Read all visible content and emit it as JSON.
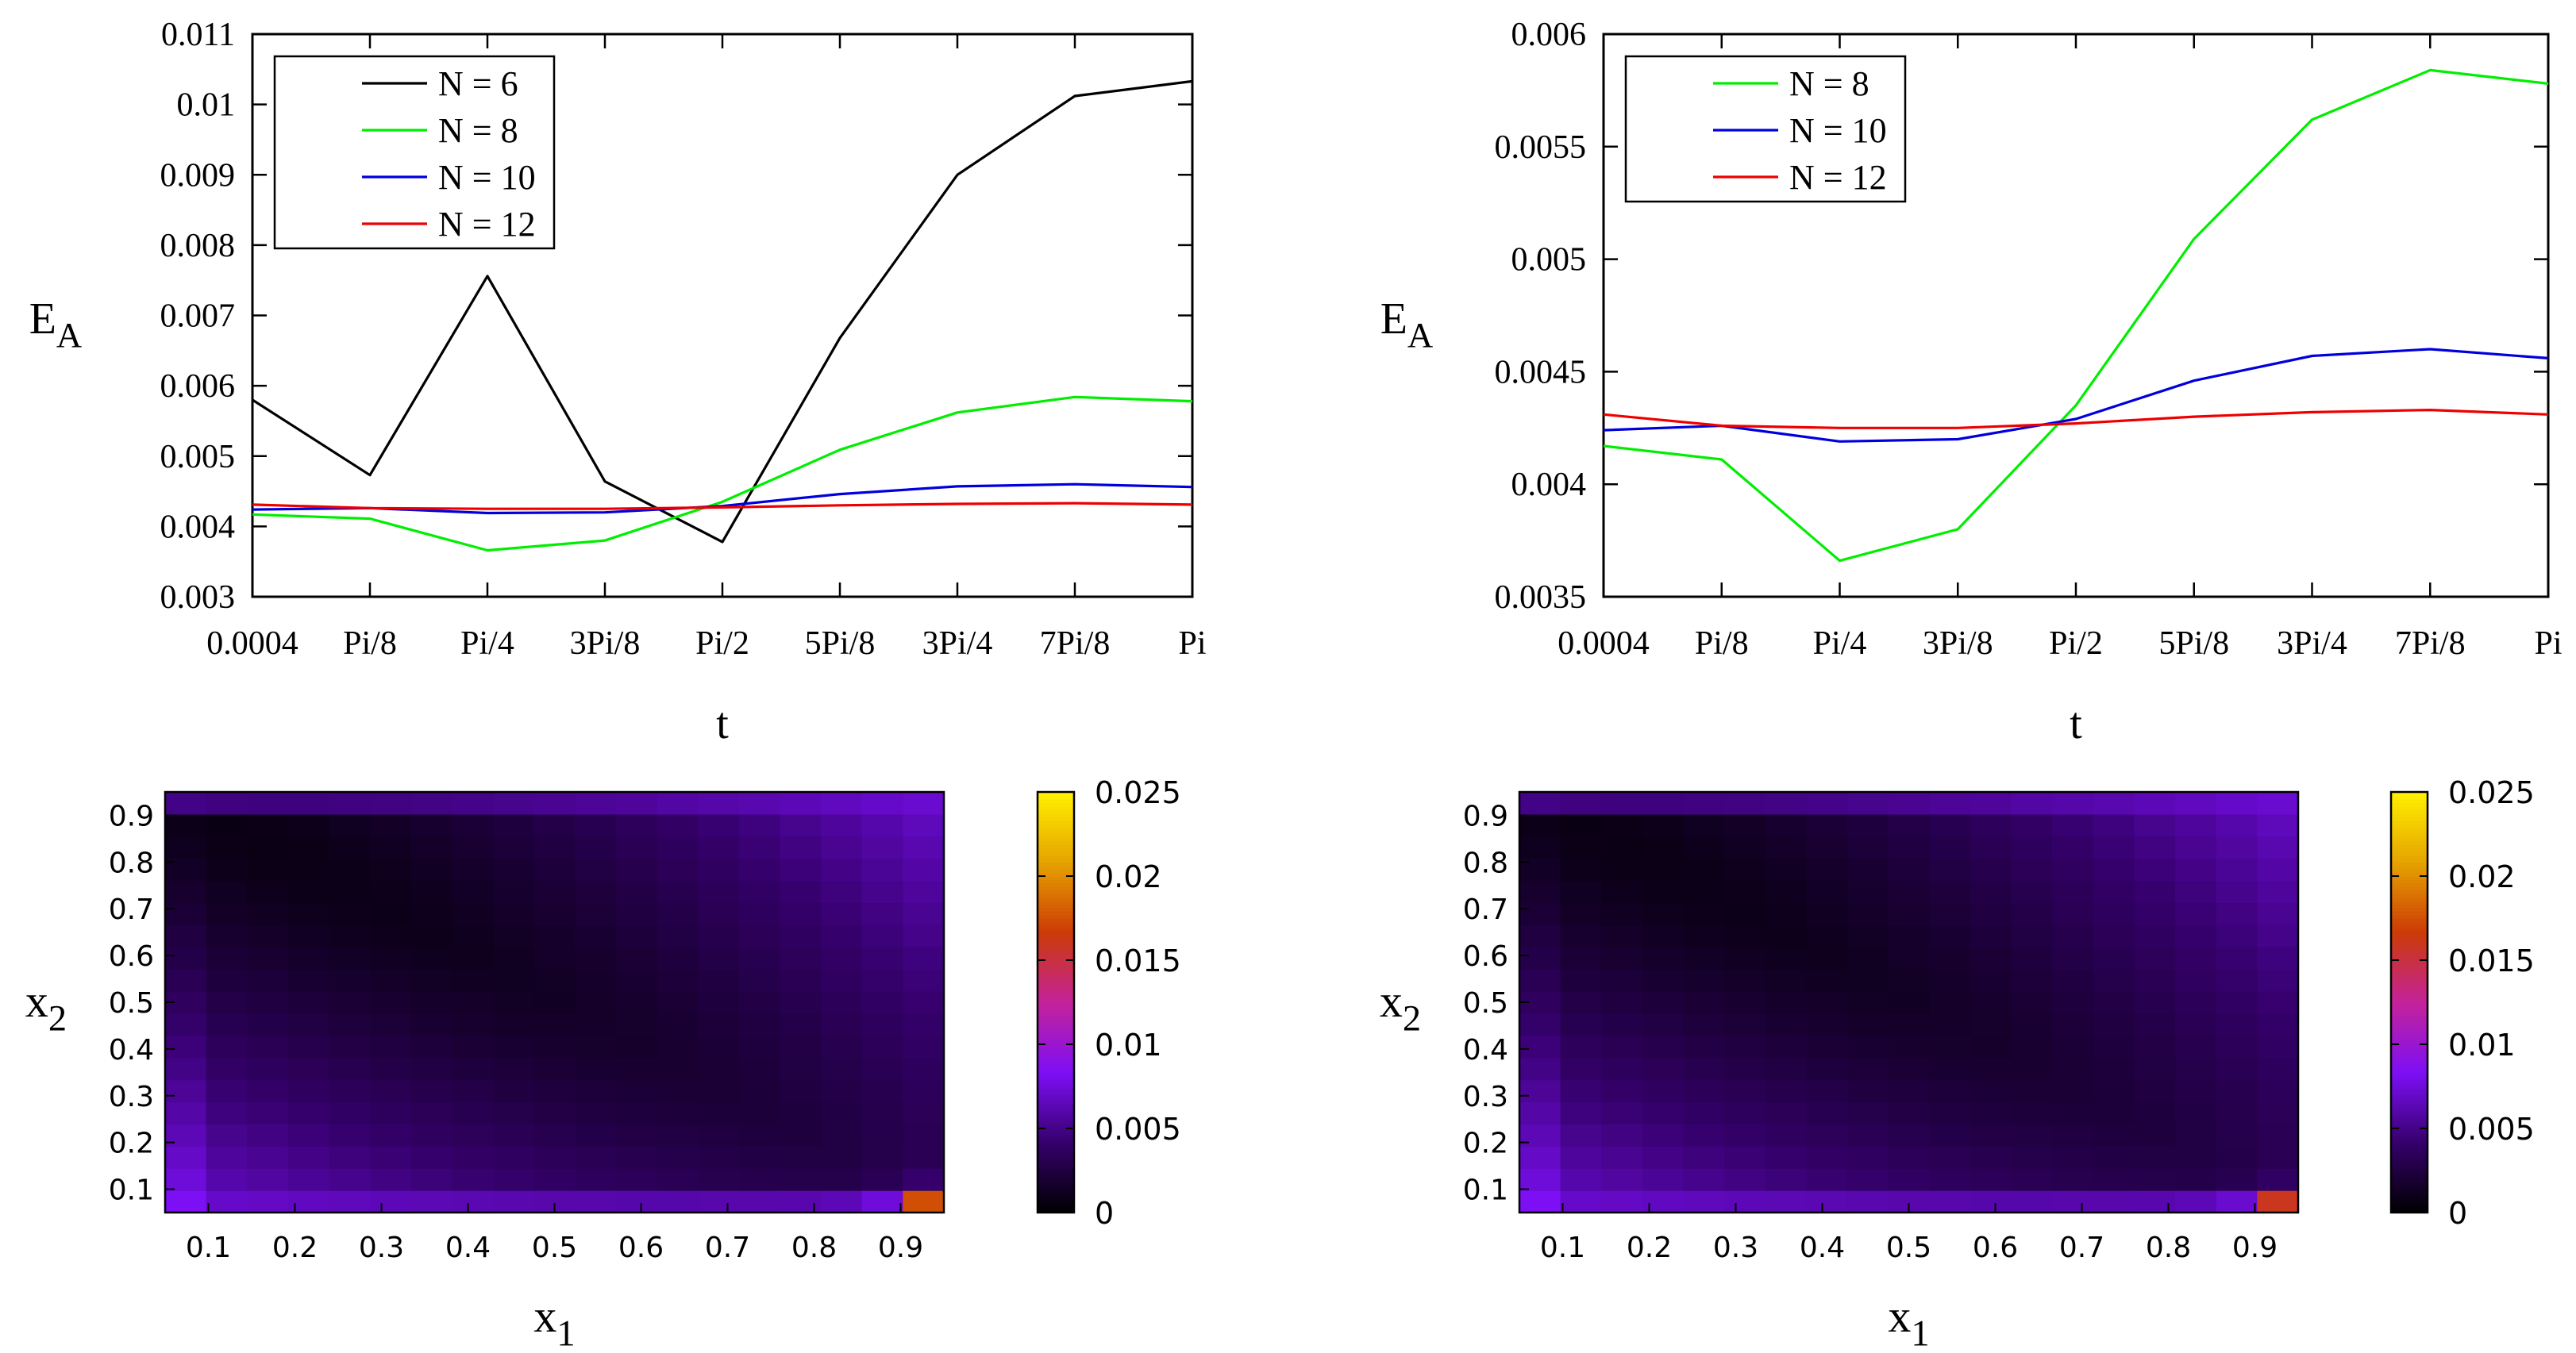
{
  "chart_data": [
    {
      "id": "top-left",
      "type": "line",
      "title": "",
      "xlabel": "t",
      "ylabel_main": "E",
      "ylabel_sub": "A",
      "categories": [
        "0.0004",
        "Pi/8",
        "Pi/4",
        "3Pi/8",
        "Pi/2",
        "5Pi/8",
        "3Pi/4",
        "7Pi/8",
        "Pi"
      ],
      "ylim": [
        0.003,
        0.011
      ],
      "yticks": [
        "0.003",
        "0.004",
        "0.005",
        "0.006",
        "0.007",
        "0.008",
        "0.009",
        "0.01",
        "0.011"
      ],
      "legend_position": "top-left",
      "series": [
        {
          "name": "N = 6",
          "color": "#000000",
          "values": [
            0.0058,
            0.00473,
            0.00756,
            0.00464,
            0.00378,
            0.00668,
            0.009,
            0.01012,
            0.01033
          ]
        },
        {
          "name": "N = 8",
          "color": "#00ee00",
          "values": [
            0.00417,
            0.00411,
            0.00366,
            0.0038,
            0.00435,
            0.00509,
            0.00562,
            0.00584,
            0.00578
          ]
        },
        {
          "name": "N = 10",
          "color": "#0000dd",
          "values": [
            0.00424,
            0.00426,
            0.00419,
            0.0042,
            0.00429,
            0.00446,
            0.00457,
            0.0046,
            0.00456
          ]
        },
        {
          "name": "N = 12",
          "color": "#ee0000",
          "values": [
            0.00431,
            0.00426,
            0.00425,
            0.00425,
            0.00427,
            0.0043,
            0.00432,
            0.00433,
            0.00431
          ]
        }
      ]
    },
    {
      "id": "top-right",
      "type": "line",
      "title": "",
      "xlabel": "t",
      "ylabel_main": "E",
      "ylabel_sub": "A",
      "categories": [
        "0.0004",
        "Pi/8",
        "Pi/4",
        "3Pi/8",
        "Pi/2",
        "5Pi/8",
        "3Pi/4",
        "7Pi/8",
        "Pi"
      ],
      "ylim": [
        0.0035,
        0.006
      ],
      "yticks": [
        "0.0035",
        "0.004",
        "0.0045",
        "0.005",
        "0.0055",
        "0.006"
      ],
      "legend_position": "top-left",
      "series": [
        {
          "name": "N = 8",
          "color": "#00ee00",
          "values": [
            0.00417,
            0.00411,
            0.00366,
            0.0038,
            0.00435,
            0.00509,
            0.00562,
            0.00584,
            0.00578
          ]
        },
        {
          "name": "N = 10",
          "color": "#0000dd",
          "values": [
            0.00424,
            0.00426,
            0.00419,
            0.0042,
            0.00429,
            0.00446,
            0.00457,
            0.0046,
            0.00456
          ]
        },
        {
          "name": "N = 12",
          "color": "#ee0000",
          "values": [
            0.00431,
            0.00426,
            0.00425,
            0.00425,
            0.00427,
            0.0043,
            0.00432,
            0.00433,
            0.00431
          ]
        }
      ]
    },
    {
      "id": "bottom-left",
      "type": "heatmap",
      "xlabel_main": "x",
      "xlabel_sub": "1",
      "ylabel_main": "x",
      "ylabel_sub": "2",
      "xlim": [
        0.05,
        0.95
      ],
      "ylim": [
        0.05,
        0.95
      ],
      "grid_size": 19,
      "xticks": [
        "0.1",
        "0.2",
        "0.3",
        "0.4",
        "0.5",
        "0.6",
        "0.7",
        "0.8",
        "0.9"
      ],
      "yticks": [
        "0.1",
        "0.2",
        "0.3",
        "0.4",
        "0.5",
        "0.6",
        "0.7",
        "0.8",
        "0.9"
      ],
      "colorbar_range": [
        0,
        0.025
      ],
      "colorbar_ticks": [
        "0",
        "0.005",
        "0.01",
        "0.015",
        "0.02",
        "0.025"
      ],
      "palette": [
        "#000000",
        "#35006b",
        "#7d0ff5",
        "#c4229a",
        "#cc3a06",
        "#e5a300",
        "#fff000"
      ],
      "corner_value": 0.0175
    },
    {
      "id": "bottom-right",
      "type": "heatmap",
      "xlabel_main": "x",
      "xlabel_sub": "1",
      "ylabel_main": "x",
      "ylabel_sub": "2",
      "xlim": [
        0.05,
        0.95
      ],
      "ylim": [
        0.05,
        0.95
      ],
      "grid_size": 19,
      "xticks": [
        "0.1",
        "0.2",
        "0.3",
        "0.4",
        "0.5",
        "0.6",
        "0.7",
        "0.8",
        "0.9"
      ],
      "yticks": [
        "0.1",
        "0.2",
        "0.3",
        "0.4",
        "0.5",
        "0.6",
        "0.7",
        "0.8",
        "0.9"
      ],
      "colorbar_range": [
        0,
        0.025
      ],
      "colorbar_ticks": [
        "0",
        "0.005",
        "0.01",
        "0.015",
        "0.02",
        "0.025"
      ],
      "palette": [
        "#000000",
        "#35006b",
        "#7d0ff5",
        "#c4229a",
        "#cc3a06",
        "#e5a300",
        "#fff000"
      ],
      "corner_value": 0.016
    }
  ]
}
